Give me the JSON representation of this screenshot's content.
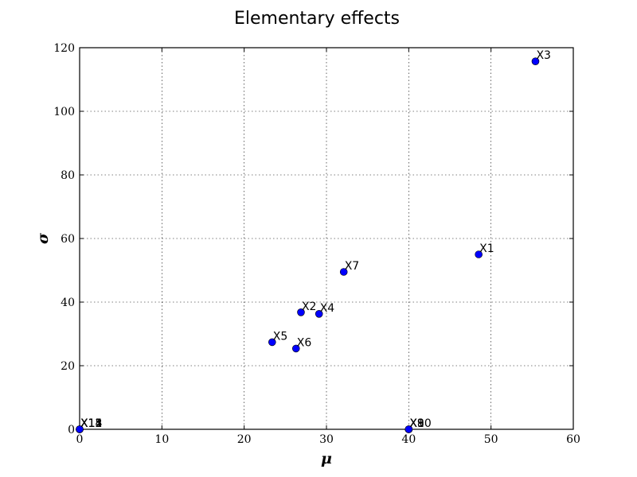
{
  "chart_data": {
    "type": "scatter",
    "title": "Elementary effects",
    "xlabel": "μ",
    "ylabel": "σ",
    "xlim": [
      0,
      60
    ],
    "ylim": [
      0,
      120
    ],
    "xticks": [
      0,
      10,
      20,
      30,
      40,
      50,
      60
    ],
    "yticks": [
      0,
      20,
      40,
      60,
      80,
      100,
      120
    ],
    "grid": true,
    "marker_color": "#0000ff",
    "points": [
      {
        "label": "X1",
        "x": 48.5,
        "y": 55.0
      },
      {
        "label": "X2",
        "x": 26.9,
        "y": 36.8
      },
      {
        "label": "X3",
        "x": 55.4,
        "y": 115.7
      },
      {
        "label": "X4",
        "x": 29.1,
        "y": 36.3
      },
      {
        "label": "X5",
        "x": 23.4,
        "y": 27.4
      },
      {
        "label": "X6",
        "x": 26.3,
        "y": 25.4
      },
      {
        "label": "X7",
        "x": 32.1,
        "y": 49.5
      },
      {
        "label": "X8",
        "x": 40.0,
        "y": 0.0
      },
      {
        "label": "X9",
        "x": 40.0,
        "y": 0.0
      },
      {
        "label": "X10",
        "x": 40.0,
        "y": 0.0
      },
      {
        "label": "X11",
        "x": 0.0,
        "y": 0.0
      },
      {
        "label": "X12",
        "x": 0.0,
        "y": 0.0
      },
      {
        "label": "X13",
        "x": 0.0,
        "y": 0.0
      },
      {
        "label": "X14",
        "x": 0.0,
        "y": 0.0
      },
      {
        "label": "X15",
        "x": 0.0,
        "y": 0.0
      }
    ]
  }
}
